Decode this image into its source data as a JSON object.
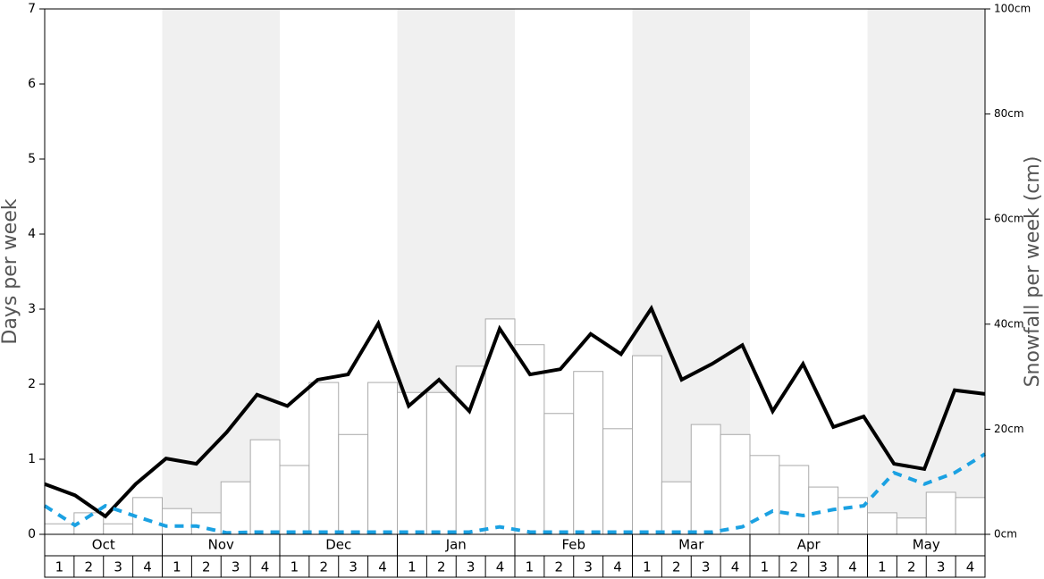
{
  "chart_data": {
    "type": "combo",
    "y_label": "Days per week",
    "y2_label": "Snowfall per week (cm)",
    "months": [
      "Oct",
      "Nov",
      "Dec",
      "Jan",
      "Feb",
      "Mar",
      "Apr",
      "May"
    ],
    "categories": [
      "1",
      "2",
      "3",
      "4",
      "1",
      "2",
      "3",
      "4",
      "1",
      "2",
      "3",
      "4",
      "1",
      "2",
      "3",
      "4",
      "1",
      "2",
      "3",
      "4",
      "1",
      "2",
      "3",
      "4",
      "1",
      "2",
      "3",
      "4",
      "1",
      "2",
      "3",
      "4"
    ],
    "ylim": [
      0,
      7
    ],
    "yticks": [
      0,
      1,
      2,
      3,
      4,
      5,
      6,
      7
    ],
    "y2lim": [
      0,
      100
    ],
    "y2ticks": [
      {
        "value": 0,
        "label": "0cm"
      },
      {
        "value": 20,
        "label": "20cm"
      },
      {
        "value": 40,
        "label": "40cm"
      },
      {
        "value": 60,
        "label": "60cm"
      },
      {
        "value": 80,
        "label": "80cm"
      },
      {
        "value": 100,
        "label": "100cm"
      }
    ],
    "shade_color": "#f0f0f0",
    "series": [
      {
        "type": "bar",
        "axis": "y2",
        "color": "#ffffff",
        "values": [
          2.0,
          4.1,
          2.0,
          7.0,
          4.9,
          4.1,
          10.0,
          18.0,
          13.1,
          28.9,
          19.0,
          28.9,
          27.0,
          27.0,
          32.0,
          41.0,
          36.1,
          23.0,
          31.0,
          20.1,
          34.0,
          10.0,
          20.9,
          19.0,
          15.0,
          13.1,
          9.0,
          7.0,
          4.1,
          3.1,
          8.0,
          7.0
        ]
      },
      {
        "type": "line",
        "color": "#000000",
        "values": [
          0.67,
          0.52,
          0.24,
          0.67,
          1.01,
          0.94,
          1.36,
          1.86,
          1.71,
          2.06,
          2.13,
          2.81,
          1.71,
          2.06,
          1.64,
          2.74,
          2.13,
          2.2,
          2.67,
          2.4,
          3.01,
          2.06,
          2.27,
          2.52,
          1.64,
          2.27,
          1.43,
          1.57,
          0.94,
          0.87,
          1.92,
          1.87
        ]
      },
      {
        "type": "line",
        "dashed": true,
        "color": "#1ba1e2",
        "values": [
          0.38,
          0.12,
          0.38,
          0.24,
          0.11,
          0.11,
          0.02,
          0.03,
          0.03,
          0.03,
          0.03,
          0.03,
          0.03,
          0.03,
          0.03,
          0.1,
          0.03,
          0.03,
          0.03,
          0.03,
          0.03,
          0.03,
          0.03,
          0.1,
          0.31,
          0.25,
          0.33,
          0.38,
          0.82,
          0.67,
          0.82,
          1.07
        ]
      }
    ]
  }
}
